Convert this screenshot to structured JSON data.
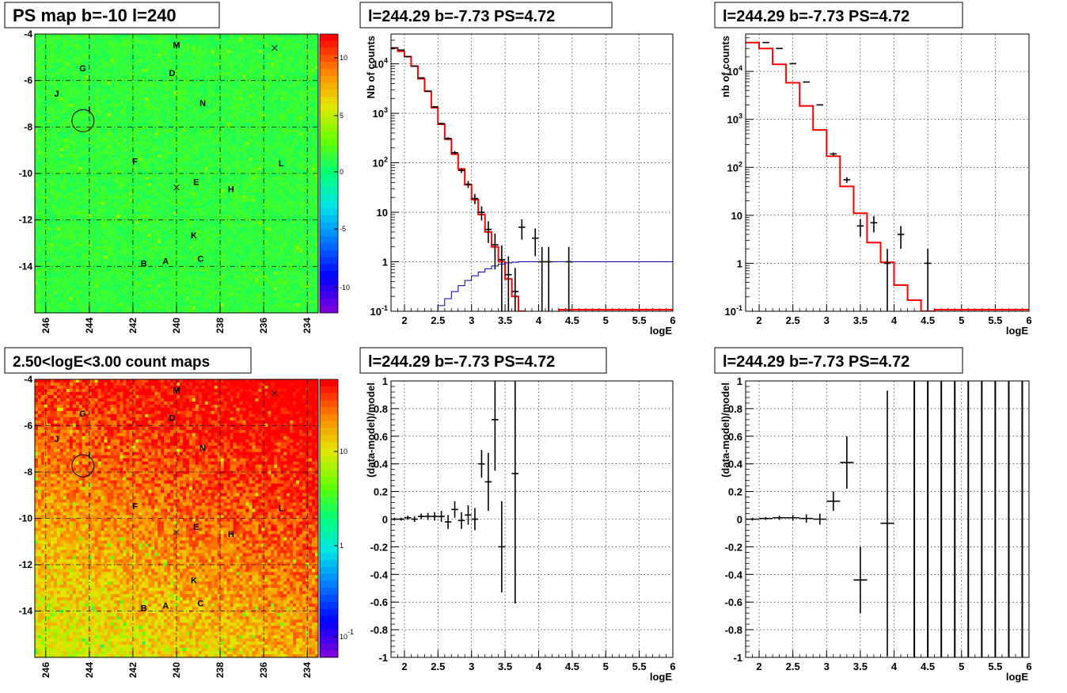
{
  "chart_data": [
    {
      "id": "map_top",
      "type": "heatmap",
      "title": "PS map b=-10 l=240",
      "x_ticks": [
        "246",
        "244",
        "242",
        "240",
        "238",
        "236",
        "234"
      ],
      "y_ticks": [
        "-4",
        "-6",
        "-8",
        "-10",
        "-12",
        "-14"
      ],
      "xlim": [
        246.5,
        233.5
      ],
      "ylim": [
        -16,
        -4
      ],
      "colorbar": {
        "ticks": [
          "10",
          "5",
          "0",
          "-5",
          "-10"
        ],
        "range": [
          -12,
          12
        ]
      },
      "labels": [
        {
          "text": "M",
          "x": 240.0,
          "y": -4.6
        },
        {
          "text": "G",
          "x": 244.3,
          "y": -5.6
        },
        {
          "text": "D",
          "x": 240.2,
          "y": -5.8
        },
        {
          "text": "J",
          "x": 245.5,
          "y": -6.7
        },
        {
          "text": "N",
          "x": 238.8,
          "y": -7.1
        },
        {
          "text": "I",
          "x": 244.0,
          "y": -7.4
        },
        {
          "text": "F",
          "x": 241.9,
          "y": -9.6
        },
        {
          "text": "L",
          "x": 235.2,
          "y": -9.7
        },
        {
          "text": "E",
          "x": 239.1,
          "y": -10.5
        },
        {
          "text": "H",
          "x": 237.5,
          "y": -10.8
        },
        {
          "text": "K",
          "x": 239.2,
          "y": -12.8
        },
        {
          "text": "B",
          "x": 241.5,
          "y": -14.0
        },
        {
          "text": "A",
          "x": 240.5,
          "y": -13.9
        },
        {
          "text": "C",
          "x": 238.9,
          "y": -13.8
        }
      ],
      "crosses": [
        {
          "x": 235.5,
          "y": -4.6
        },
        {
          "x": 240.0,
          "y": -10.6
        }
      ],
      "circle": {
        "x": 244.29,
        "y": -7.73
      }
    },
    {
      "id": "spec_left",
      "type": "line",
      "title": "l=244.29 b=-7.73 PS=4.72",
      "xlabel": "logE",
      "ylabel": "Nb of counts",
      "log_y": true,
      "xlim": [
        1.8,
        6
      ],
      "ylim": [
        0.1,
        40000
      ],
      "x_ticks": [
        "2",
        "2.5",
        "3",
        "3.5",
        "4",
        "4.5",
        "5",
        "5.5",
        "6"
      ],
      "y_ticks": [
        "10^-1",
        "1",
        "10",
        "10^2",
        "10^3",
        "10^4"
      ],
      "grid": true,
      "series": [
        {
          "kind": "model-step",
          "color": "#ff0000",
          "bin_width": 0.1,
          "x": [
            1.8,
            1.9,
            2.0,
            2.1,
            2.2,
            2.3,
            2.4,
            2.5,
            2.6,
            2.7,
            2.8,
            2.9,
            3.0,
            3.1,
            3.2,
            3.3,
            3.4,
            3.5,
            3.6,
            3.7,
            3.8,
            3.9,
            4.0,
            4.1,
            4.2
          ],
          "y": [
            21000,
            18000,
            14000,
            9000,
            5000,
            2800,
            1300,
            600,
            300,
            150,
            75,
            36,
            18,
            9,
            4,
            2,
            1,
            0.45,
            0.2,
            0.1,
            0.05,
            0.03,
            0.02,
            0.01,
            0.005
          ]
        },
        {
          "kind": "efficiency-step",
          "color": "#0000aa",
          "bin_width": 0.1,
          "x": [
            2.4,
            2.5,
            2.6,
            2.7,
            2.8,
            2.9,
            3.0,
            3.1,
            3.2,
            3.3,
            3.4,
            3.5,
            3.6,
            3.7,
            3.8,
            3.9,
            4.0,
            4.2,
            4.5,
            5.0,
            5.5,
            6.0
          ],
          "y": [
            0.1,
            0.13,
            0.18,
            0.25,
            0.33,
            0.42,
            0.52,
            0.62,
            0.72,
            0.82,
            0.9,
            0.95,
            0.98,
            1,
            1,
            1,
            1,
            1,
            1,
            1,
            1,
            1
          ]
        },
        {
          "kind": "data",
          "color": "#000000",
          "x": [
            1.85,
            1.95,
            2.05,
            2.15,
            2.25,
            2.35,
            2.45,
            2.55,
            2.65,
            2.75,
            2.85,
            2.95,
            3.05,
            3.15,
            3.25,
            3.35,
            3.45,
            3.55,
            3.65,
            3.75,
            3.95,
            4.05,
            4.15,
            4.45
          ],
          "y": [
            21000,
            19000,
            14000,
            9000,
            5200,
            2800,
            1350,
            620,
            310,
            160,
            70,
            37,
            19,
            10,
            4.5,
            2.2,
            1.1,
            0.55,
            0.25,
            5,
            3,
            1,
            1,
            1
          ],
          "yerr": [
            150,
            140,
            120,
            95,
            72,
            53,
            37,
            25,
            18,
            13,
            8,
            6,
            4.4,
            3.2,
            2.1,
            1.5,
            1.05,
            0.74,
            0.5,
            2.2,
            1.7,
            1,
            1,
            1
          ]
        }
      ]
    },
    {
      "id": "spec_right",
      "type": "line",
      "title": "l=244.29 b=-7.73 PS=4.72",
      "xlabel": "logE",
      "ylabel": "nb of counts",
      "log_y": true,
      "xlim": [
        1.8,
        6
      ],
      "ylim": [
        0.1,
        60000
      ],
      "x_ticks": [
        "2",
        "2.5",
        "3",
        "3.5",
        "4",
        "4.5",
        "5",
        "5.5",
        "6"
      ],
      "y_ticks": [
        "10^-1",
        "1",
        "10",
        "10^2",
        "10^3",
        "10^4"
      ],
      "grid": true,
      "series": [
        {
          "kind": "model-step",
          "color": "#ff0000",
          "bin_width": 0.2,
          "x": [
            1.8,
            2.0,
            2.2,
            2.4,
            2.6,
            2.8,
            3.0,
            3.2,
            3.4,
            3.6,
            3.8,
            4.0,
            4.2,
            4.4
          ],
          "y": [
            40000,
            30000,
            14000,
            5800,
            1900,
            600,
            170,
            40,
            11,
            2.7,
            1.05,
            0.35,
            0.17,
            0.1
          ]
        },
        {
          "kind": "data",
          "color": "#000000",
          "x": [
            2.1,
            2.3,
            2.5,
            2.7,
            2.9,
            3.1,
            3.3,
            3.5,
            3.7,
            3.9,
            4.1,
            4.5
          ],
          "y": [
            40000,
            30000,
            14500,
            6000,
            2000,
            190,
            55,
            6,
            7,
            1,
            4,
            1
          ],
          "yerr": [
            200,
            170,
            120,
            77,
            45,
            14,
            7.4,
            2.4,
            2.6,
            1,
            2,
            1
          ]
        }
      ]
    },
    {
      "id": "map_bottom",
      "type": "heatmap",
      "title": "2.50<logE<3.00 count maps",
      "x_ticks": [
        "246",
        "244",
        "242",
        "240",
        "238",
        "236",
        "234"
      ],
      "y_ticks": [
        "-4",
        "-6",
        "-8",
        "-10",
        "-12",
        "-14"
      ],
      "xlim": [
        246.5,
        233.5
      ],
      "ylim": [
        -16,
        -4
      ],
      "colorbar": {
        "ticks": [
          "10",
          "1",
          "10^-1"
        ],
        "log": true
      },
      "labels": [
        {
          "text": "M",
          "x": 240.0,
          "y": -4.6
        },
        {
          "text": "G",
          "x": 244.3,
          "y": -5.6
        },
        {
          "text": "D",
          "x": 240.2,
          "y": -5.8
        },
        {
          "text": "J",
          "x": 245.5,
          "y": -6.7
        },
        {
          "text": "N",
          "x": 238.8,
          "y": -7.1
        },
        {
          "text": "I",
          "x": 244.0,
          "y": -7.4
        },
        {
          "text": "F",
          "x": 241.9,
          "y": -9.6
        },
        {
          "text": "L",
          "x": 235.2,
          "y": -9.7
        },
        {
          "text": "E",
          "x": 239.1,
          "y": -10.5
        },
        {
          "text": "H",
          "x": 237.5,
          "y": -10.8
        },
        {
          "text": "K",
          "x": 239.2,
          "y": -12.8
        },
        {
          "text": "B",
          "x": 241.5,
          "y": -14.0
        },
        {
          "text": "A",
          "x": 240.5,
          "y": -13.9
        },
        {
          "text": "C",
          "x": 238.9,
          "y": -13.8
        }
      ],
      "crosses": [
        {
          "x": 235.5,
          "y": -4.6
        },
        {
          "x": 240.0,
          "y": -10.6
        }
      ],
      "circle": {
        "x": 244.29,
        "y": -7.73
      }
    },
    {
      "id": "res_left",
      "type": "scatter",
      "title": "l=244.29 b=-7.73 PS=4.72",
      "xlabel": "logE",
      "ylabel": "(data-model)/model",
      "xlim": [
        1.8,
        6
      ],
      "ylim": [
        -1,
        1
      ],
      "x_ticks": [
        "2",
        "2.5",
        "3",
        "3.5",
        "4",
        "4.5",
        "5",
        "5.5",
        "6"
      ],
      "y_ticks": [
        "1",
        "0.8",
        "0.6",
        "0.4",
        "0.2",
        "0",
        "-0.2",
        "-0.4",
        "-0.6",
        "-0.8",
        "-1"
      ],
      "grid": true,
      "series": [
        {
          "kind": "data",
          "color": "#000000",
          "xerr": 0.05,
          "x": [
            1.85,
            1.95,
            2.05,
            2.15,
            2.25,
            2.35,
            2.45,
            2.55,
            2.65,
            2.75,
            2.85,
            2.95,
            3.05,
            3.15,
            3.25,
            3.35,
            3.45,
            3.65
          ],
          "y": [
            0,
            0,
            0.01,
            0,
            0.02,
            0.02,
            0.02,
            0.02,
            -0.02,
            0.07,
            -0.01,
            0.03,
            0,
            0.4,
            0.27,
            0.72,
            -0.2,
            0.33
          ],
          "yerr": [
            0.01,
            0.01,
            0.015,
            0.02,
            0.02,
            0.025,
            0.03,
            0.04,
            0.05,
            0.06,
            0.06,
            0.07,
            0.08,
            0.1,
            0.21,
            0.37,
            0.33,
            0.94
          ]
        }
      ]
    },
    {
      "id": "res_right",
      "type": "scatter",
      "title": "l=244.29 b=-7.73 PS=4.72",
      "xlabel": "logE",
      "ylabel": "(data-model)/model",
      "xlim": [
        1.8,
        6
      ],
      "ylim": [
        -1,
        1
      ],
      "x_ticks": [
        "2",
        "2.5",
        "3",
        "3.5",
        "4",
        "4.5",
        "5",
        "5.5",
        "6"
      ],
      "y_ticks": [
        "1",
        "0.8",
        "0.6",
        "0.4",
        "0.2",
        "0",
        "-0.2",
        "-0.4",
        "-0.6",
        "-0.8",
        "-1"
      ],
      "grid": true,
      "series": [
        {
          "kind": "data",
          "color": "#000000",
          "xerr": 0.1,
          "x": [
            1.9,
            2.1,
            2.3,
            2.5,
            2.7,
            2.9,
            3.1,
            3.3,
            3.5,
            3.9
          ],
          "y": [
            0,
            0.005,
            0.01,
            0.01,
            0.005,
            0,
            0.13,
            0.41,
            -0.44,
            -0.03
          ],
          "yerr": [
            0.01,
            0.01,
            0.015,
            0.02,
            0.03,
            0.04,
            0.07,
            0.19,
            0.24,
            0.96
          ]
        },
        {
          "kind": "vlines",
          "color": "#000000",
          "x": [
            4.3,
            4.5,
            4.7,
            4.9,
            5.1,
            5.3,
            5.5,
            5.7,
            5.9
          ]
        }
      ]
    }
  ]
}
